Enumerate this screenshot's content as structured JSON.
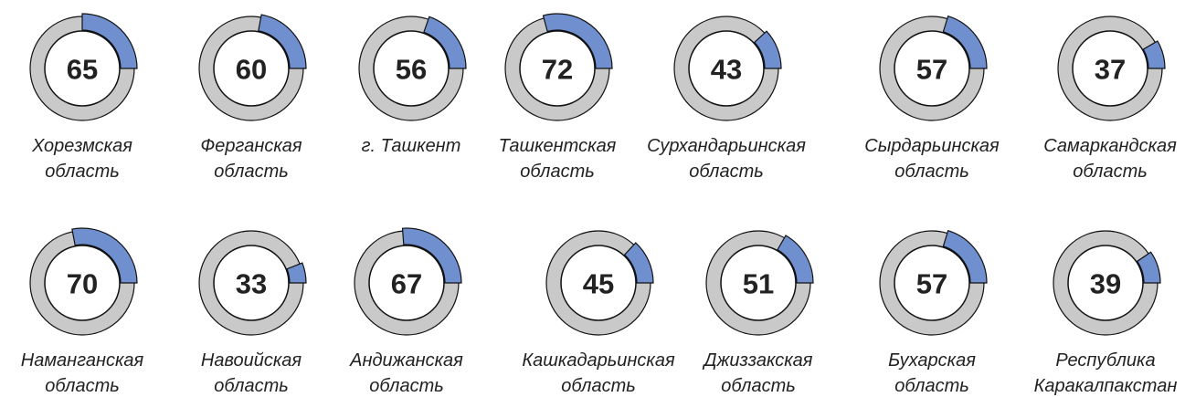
{
  "chart_data": {
    "type": "gauge",
    "categories": [
      [
        "Хорезмская",
        "область"
      ],
      [
        "Ферганская",
        "область"
      ],
      [
        "г. Ташкент"
      ],
      [
        "Ташкентская",
        "область"
      ],
      [
        "Сурхандарьинская",
        "область"
      ],
      [
        "Сырдарьинская",
        "область"
      ],
      [
        "Самаркандская",
        "область"
      ],
      [
        "Наманганская",
        "область"
      ],
      [
        "Навоийская",
        "область"
      ],
      [
        "Андижанская",
        "область"
      ],
      [
        "Кашкадарьинская",
        "область"
      ],
      [
        "Джиззакская",
        "область"
      ],
      [
        "Бухарская",
        "область"
      ],
      [
        "Республика",
        "Каракалпакстан"
      ]
    ],
    "values": [
      65,
      60,
      56,
      72,
      43,
      57,
      37,
      70,
      33,
      67,
      45,
      51,
      57,
      39
    ],
    "ylim": [
      23,
      191
    ],
    "color": "#6f8fcf",
    "track_color": "#c9c9c9"
  }
}
